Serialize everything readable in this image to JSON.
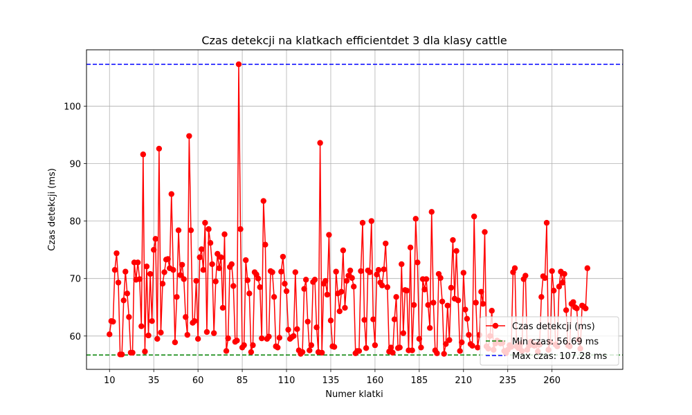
{
  "chart_data": {
    "type": "line",
    "title": "Czas detekcji na klatkach efficientdet 3 dla klasy cattle",
    "xlabel": "Numer klatki",
    "ylabel": "Czas detekcji (ms)",
    "xlim": [
      -3,
      300
    ],
    "ylim": [
      54.2,
      109.8
    ],
    "xticks": [
      10,
      35,
      60,
      85,
      110,
      135,
      160,
      185,
      210,
      235,
      260
    ],
    "yticks": [
      60,
      70,
      80,
      90,
      100
    ],
    "grid": true,
    "legend_position": "lower-right",
    "series": [
      {
        "name": "Czas detekcji (ms)",
        "color": "#ff0000",
        "marker": "circle",
        "x_start": 10,
        "values": [
          60.3,
          62.6,
          62.5,
          71.5,
          74.4,
          69.3,
          56.8,
          56.8,
          66.2,
          71.2,
          67.4,
          63.3,
          57.1,
          57.1,
          72.8,
          69.8,
          72.8,
          69.9,
          61.7,
          91.6,
          57.3,
          72.1,
          60.1,
          70.8,
          62.6,
          75.0,
          76.9,
          59.5,
          92.6,
          60.6,
          69.1,
          71.1,
          73.3,
          73.4,
          71.8,
          84.7,
          71.5,
          58.9,
          66.8,
          78.4,
          70.6,
          72.4,
          69.9,
          63.3,
          60.2,
          94.8,
          78.4,
          62.3,
          62.6,
          69.6,
          59.5,
          73.7,
          75.1,
          71.5,
          79.7,
          60.7,
          78.6,
          76.2,
          72.5,
          60.5,
          69.5,
          74.3,
          71.8,
          73.7,
          64.9,
          77.7,
          57.4,
          59.6,
          72.0,
          72.5,
          68.7,
          59.0,
          59.2,
          107.28,
          78.6,
          58.0,
          58.4,
          73.2,
          69.7,
          67.4,
          57.2,
          58.4,
          71.1,
          70.7,
          70.0,
          68.5,
          59.6,
          83.5,
          75.9,
          59.5,
          59.9,
          71.3,
          71.1,
          66.8,
          58.2,
          58.0,
          59.7,
          71.2,
          73.8,
          69.1,
          67.8,
          61.1,
          59.5,
          59.8,
          60.0,
          71.1,
          61.2,
          57.5,
          56.9,
          57.2,
          68.2,
          69.8,
          62.5,
          57.5,
          58.4,
          69.4,
          69.8,
          61.5,
          57.2,
          93.6,
          57.1,
          69.1,
          69.6,
          67.2,
          77.6,
          62.7,
          58.2,
          58.1,
          71.2,
          67.4,
          64.3,
          67.7,
          74.9,
          64.9,
          69.6,
          70.5,
          71.4,
          70.1,
          68.6,
          57.0,
          57.4,
          57.4,
          71.3,
          79.7,
          62.8,
          57.9,
          71.4,
          71.1,
          80.0,
          62.9,
          58.4,
          70.7,
          71.5,
          69.3,
          68.8,
          71.6,
          76.1,
          68.5,
          57.3,
          58.0,
          57.1,
          62.9,
          66.8,
          57.9,
          58.0,
          72.5,
          60.5,
          68.0,
          67.9,
          57.5,
          75.4,
          57.5,
          65.4,
          80.4,
          72.8,
          59.5,
          58.0,
          69.9,
          68.1,
          69.9,
          65.4,
          61.4,
          81.6,
          65.8,
          57.5,
          57.0,
          70.8,
          70.1,
          66.0,
          56.9,
          58.6,
          65.3,
          59.3,
          68.4,
          76.7,
          66.5,
          74.8,
          66.2,
          57.4,
          58.9,
          71.0,
          64.6,
          63.0,
          60.2,
          58.6,
          58.3,
          80.8,
          65.8,
          58.0,
          60.2,
          67.7,
          65.6,
          78.1,
          58.2,
          57.8,
          60.0,
          64.4,
          57.6,
          58.7,
          59.2,
          59.0,
          58.7,
          58.8,
          57.4,
          57.0,
          57.6,
          58.4,
          58.1,
          71.1,
          71.8,
          58.2,
          57.9,
          58.6,
          57.4,
          69.9,
          70.5,
          57.6,
          58.3,
          59.0,
          58.5,
          58.3,
          58.5,
          57.3,
          58.5,
          66.8,
          70.4,
          70.1,
          79.7,
          57.6,
          58.9,
          71.3,
          67.9,
          58.5,
          58.2,
          68.6,
          71.2,
          69.3,
          70.8,
          64.5,
          58.4,
          58.2,
          65.6,
          65.9,
          65.0,
          64.8,
          59.4,
          57.8,
          65.3,
          65.1,
          64.8,
          71.8
        ]
      },
      {
        "name": "Min czas: 56.69 ms",
        "type": "hline",
        "value": 56.69,
        "color": "#008000",
        "style": "dashed"
      },
      {
        "name": "Max czas: 107.28 ms",
        "type": "hline",
        "value": 107.28,
        "color": "#0000ff",
        "style": "dashed"
      }
    ]
  }
}
